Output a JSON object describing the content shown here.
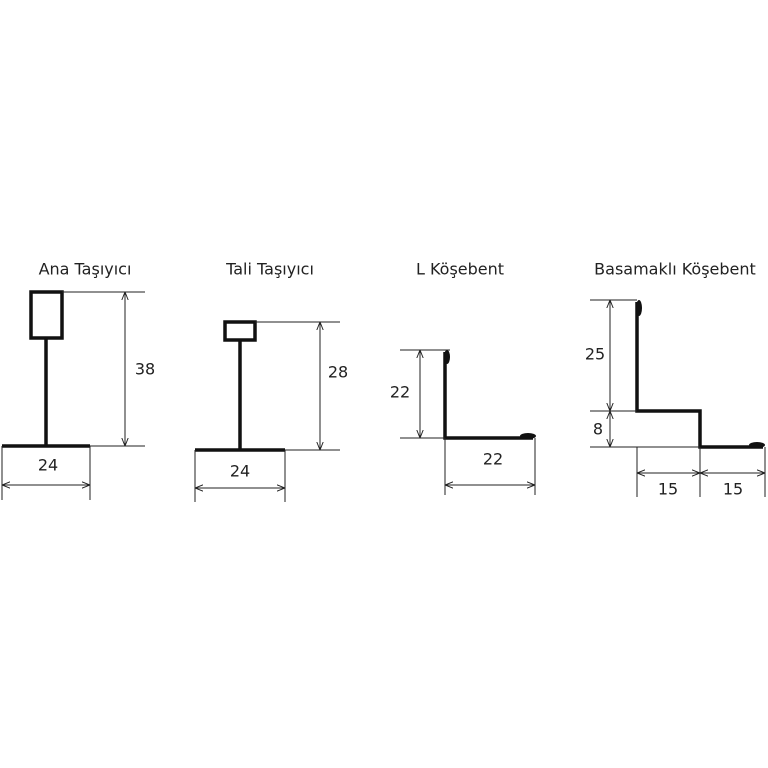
{
  "profiles": [
    {
      "title": "Ana Taşıyıcı",
      "dimensions": [
        38,
        24
      ]
    },
    {
      "title": "Tali Taşıyıcı",
      "dimensions": [
        28,
        24
      ]
    },
    {
      "title": "L Köşebent",
      "dimensions": [
        22,
        22
      ]
    },
    {
      "title": "Basamaklı Köşebent",
      "dimensions": [
        25,
        8,
        15,
        15
      ]
    }
  ]
}
